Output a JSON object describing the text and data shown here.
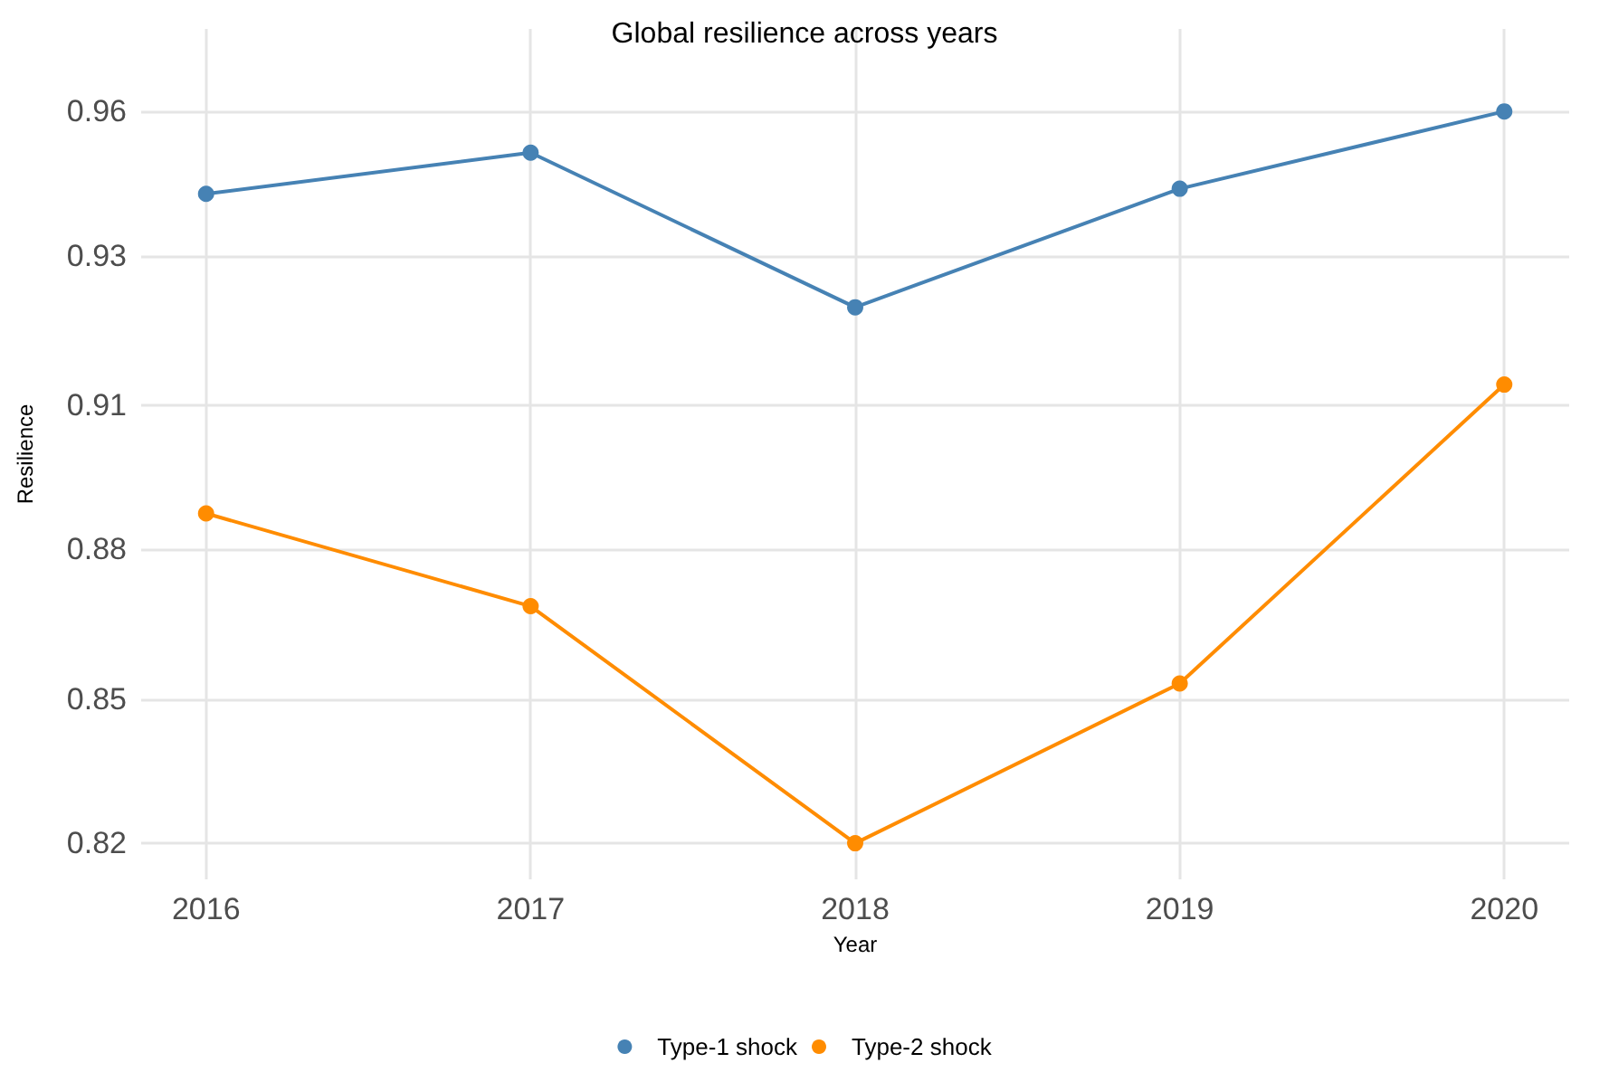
{
  "chart_data": {
    "type": "line",
    "title": "Global resilience across years",
    "xlabel": "Year",
    "ylabel": "Resilience",
    "x": [
      2016,
      2017,
      2018,
      2019,
      2020
    ],
    "series": [
      {
        "name": "Type-1 shock",
        "color": "#4682b4",
        "values": [
          0.946,
          0.954,
          0.924,
          0.947,
          0.962
        ]
      },
      {
        "name": "Type-2 shock",
        "color": "#ff8c00",
        "values": [
          0.884,
          0.866,
          0.82,
          0.851,
          0.909
        ]
      }
    ],
    "xlim": [
      2015.8,
      2020.2
    ],
    "xticks": [
      2016,
      2017,
      2018,
      2019,
      2020
    ],
    "ylim": [
      0.813,
      0.978
    ],
    "yticks": [
      {
        "value": 0.82,
        "label": "0.82"
      },
      {
        "value": 0.848,
        "label": "0.85"
      },
      {
        "value": 0.877,
        "label": "0.88"
      },
      {
        "value": 0.905,
        "label": "0.91"
      },
      {
        "value": 0.934,
        "label": "0.93"
      },
      {
        "value": 0.962,
        "label": "0.96"
      }
    ],
    "grid": true,
    "legend": "bottom",
    "marker": "circle",
    "line_style": "solid"
  }
}
